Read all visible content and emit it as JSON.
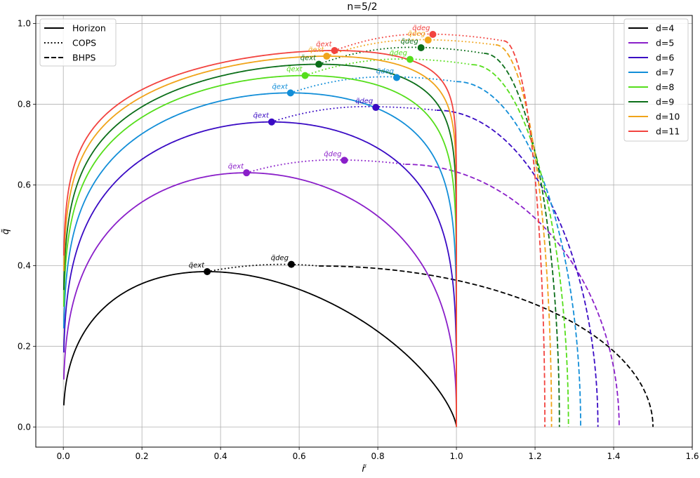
{
  "chart_data": {
    "type": "line",
    "title": "n=5/2",
    "xlabel": "r̃",
    "ylabel": "q̃",
    "xlim": [
      -0.07,
      1.6
    ],
    "ylim": [
      -0.05,
      1.02
    ],
    "xticks": [
      "0.0",
      "0.2",
      "0.4",
      "0.6",
      "0.8",
      "1.0",
      "1.2",
      "1.4",
      "1.6"
    ],
    "yticks": [
      "0.0",
      "0.2",
      "0.4",
      "0.6",
      "0.8",
      "1.0"
    ],
    "grid": true,
    "style_legend": {
      "placement": "top-left",
      "entries": [
        {
          "label": "Horizon",
          "dash": "solid"
        },
        {
          "label": "COPS",
          "dash": "dotted"
        },
        {
          "label": "BHPS",
          "dash": "dashed"
        }
      ]
    },
    "color_legend": {
      "placement": "top-right",
      "entries": [
        "d=4",
        "d=5",
        "d=6",
        "d=7",
        "d=8",
        "d=9",
        "d=10",
        "d=11"
      ]
    },
    "marker_labels": {
      "ext": "q̃ext",
      "deg": "q̃deg"
    },
    "series": [
      {
        "name": "d=4",
        "color": "#000000",
        "r_ext": 0.366,
        "q_ext": 0.385,
        "r_deg": 0.58,
        "q_deg": 0.403,
        "cops_max": 0.403,
        "cops_end_r": 0.65,
        "cops_end_q": 0.399,
        "r_end": 1.5,
        "h_exp": 0.4
      },
      {
        "name": "d=5",
        "color": "#8a1fc9",
        "r_ext": 0.466,
        "q_ext": 0.63,
        "r_deg": 0.715,
        "q_deg": 0.661,
        "cops_max": 0.662,
        "cops_end_r": 0.87,
        "cops_end_q": 0.651,
        "r_end": 1.414,
        "h_exp": 0.32
      },
      {
        "name": "d=6",
        "color": "#3a0bc4",
        "r_ext": 0.53,
        "q_ext": 0.756,
        "r_deg": 0.795,
        "q_deg": 0.792,
        "cops_max": 0.794,
        "cops_end_r": 0.95,
        "cops_end_q": 0.785,
        "r_end": 1.36,
        "h_exp": 0.26
      },
      {
        "name": "d=7",
        "color": "#128ed8",
        "r_ext": 0.578,
        "q_ext": 0.828,
        "r_deg": 0.848,
        "q_deg": 0.866,
        "cops_max": 0.868,
        "cops_end_r": 1.0,
        "cops_end_q": 0.856,
        "r_end": 1.316,
        "h_exp": 0.22
      },
      {
        "name": "d=8",
        "color": "#55de1b",
        "r_ext": 0.615,
        "q_ext": 0.871,
        "r_deg": 0.882,
        "q_deg": 0.911,
        "cops_max": 0.912,
        "cops_end_r": 1.04,
        "cops_end_q": 0.898,
        "r_end": 1.285,
        "h_exp": 0.19
      },
      {
        "name": "d=9",
        "color": "#0b6e19",
        "r_ext": 0.65,
        "q_ext": 0.899,
        "r_deg": 0.91,
        "q_deg": 0.94,
        "cops_max": 0.941,
        "cops_end_r": 1.07,
        "cops_end_q": 0.926,
        "r_end": 1.262,
        "h_exp": 0.17
      },
      {
        "name": "d=10",
        "color": "#f0a41a",
        "r_ext": 0.67,
        "q_ext": 0.919,
        "r_deg": 0.928,
        "q_deg": 0.959,
        "cops_max": 0.96,
        "cops_end_r": 1.1,
        "cops_end_q": 0.947,
        "r_end": 1.242,
        "h_exp": 0.15
      },
      {
        "name": "d=11",
        "color": "#f2433f",
        "r_ext": 0.69,
        "q_ext": 0.933,
        "r_deg": 0.94,
        "q_deg": 0.973,
        "cops_max": 0.974,
        "cops_end_r": 1.12,
        "cops_end_q": 0.957,
        "r_end": 1.225,
        "h_exp": 0.135
      }
    ]
  }
}
